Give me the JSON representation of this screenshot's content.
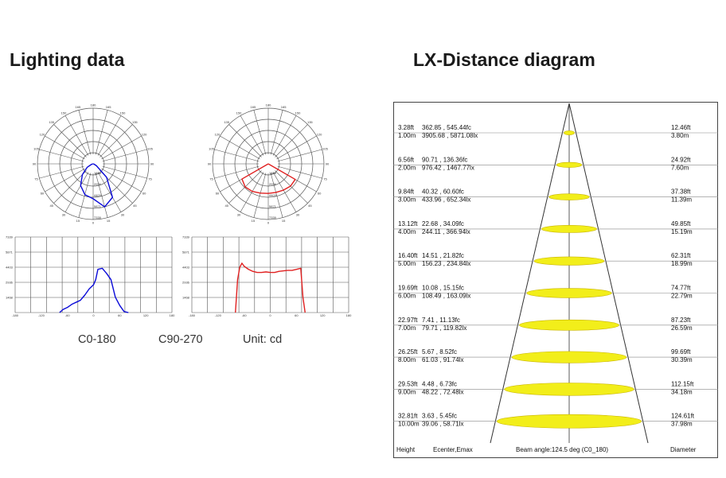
{
  "lighting_title": "Lighting data",
  "lx_title": "LX-Distance diagram",
  "curve_labels": {
    "c0": "C0-180",
    "c90": "C90-270",
    "unit": "Unit: cd"
  },
  "colors": {
    "c0_curve": "#0a0ad8",
    "c90_curve": "#e02020",
    "beam_fill": "#f2ee1a",
    "beam_stroke": "#c8b400",
    "grid": "#555555"
  },
  "polar_angle_labels": [
    "180",
    "165",
    "150",
    "135",
    "120",
    "105",
    "90",
    "75",
    "60",
    "45",
    "30",
    "15",
    "0"
  ],
  "polar_radial_labels": [
    "1468",
    "2936",
    "4403",
    "5871",
    "7339"
  ],
  "rect_y_labels": [
    "7339",
    "5871",
    "4403",
    "2936",
    "1468"
  ],
  "rect_x_labels": [
    "-180",
    "-120",
    "-60",
    "0",
    "60",
    "120",
    "180"
  ],
  "lx_rows": [
    {
      "h_ft": "3.28ft",
      "h_m": "1.00m",
      "e_fc": "362.85 , 545.44fc",
      "e_lx": "3905.68 , 5871.08lx",
      "d_ft": "12.46ft",
      "d_m": "3.80m"
    },
    {
      "h_ft": "6.56ft",
      "h_m": "2.00m",
      "e_fc": "90.71 , 136.36fc",
      "e_lx": "976.42 , 1467.77lx",
      "d_ft": "24.92ft",
      "d_m": "7.60m"
    },
    {
      "h_ft": "9.84ft",
      "h_m": "3.00m",
      "e_fc": "40.32 , 60.60fc",
      "e_lx": "433.96 , 652.34lx",
      "d_ft": "37.38ft",
      "d_m": "11.39m"
    },
    {
      "h_ft": "13.12ft",
      "h_m": "4.00m",
      "e_fc": "22.68 , 34.09fc",
      "e_lx": "244.11 , 366.94lx",
      "d_ft": "49.85ft",
      "d_m": "15.19m"
    },
    {
      "h_ft": "16.40ft",
      "h_m": "5.00m",
      "e_fc": "14.51 , 21.82fc",
      "e_lx": "156.23 , 234.84lx",
      "d_ft": "62.31ft",
      "d_m": "18.99m"
    },
    {
      "h_ft": "19.69ft",
      "h_m": "6.00m",
      "e_fc": "10.08 , 15.15fc",
      "e_lx": "108.49 , 163.09lx",
      "d_ft": "74.77ft",
      "d_m": "22.79m"
    },
    {
      "h_ft": "22.97ft",
      "h_m": "7.00m",
      "e_fc": "7.41 , 11.13fc",
      "e_lx": "79.71 , 119.82lx",
      "d_ft": "87.23ft",
      "d_m": "26.59m"
    },
    {
      "h_ft": "26.25ft",
      "h_m": "8.00m",
      "e_fc": "5.67 , 8.52fc",
      "e_lx": "61.03 , 91.74lx",
      "d_ft": "99.69ft",
      "d_m": "30.39m"
    },
    {
      "h_ft": "29.53ft",
      "h_m": "9.00m",
      "e_fc": "4.48 , 6.73fc",
      "e_lx": "48.22 , 72.48lx",
      "d_ft": "112.15ft",
      "d_m": "34.18m"
    },
    {
      "h_ft": "32.81ft",
      "h_m": "10.00m",
      "e_fc": "3.63 , 5.45fc",
      "e_lx": "39.06 , 58.71lx",
      "d_ft": "124.61ft",
      "d_m": "37.98m"
    }
  ],
  "lx_footer": {
    "height": "Height",
    "ecenter": "Ecenter,Emax",
    "beam": "Beam angle:124.5 deg (C0_180)",
    "diameter": "Diameter"
  },
  "chart_data": [
    {
      "type": "polar",
      "name": "C0-180",
      "unit": "cd",
      "r_max": 7339,
      "angles_deg": [
        -90,
        -75,
        -60,
        -45,
        -30,
        -15,
        0,
        15,
        30,
        45,
        60,
        75,
        90
      ],
      "values": [
        0,
        200,
        900,
        2000,
        3300,
        4200,
        4600,
        5871,
        5100,
        2500,
        500,
        100,
        0
      ]
    },
    {
      "type": "polar",
      "name": "C90-270",
      "unit": "cd",
      "r_max": 7339,
      "angles_deg": [
        -90,
        -75,
        -60,
        -45,
        -30,
        -15,
        0,
        15,
        30,
        45,
        60,
        75,
        90
      ],
      "values": [
        0,
        0,
        4000,
        4300,
        4200,
        4000,
        3900,
        3900,
        4000,
        4150,
        4100,
        0,
        0
      ]
    },
    {
      "type": "line",
      "name": "C0-180",
      "xlim": [
        -180,
        180
      ],
      "ylim": [
        0,
        7339
      ],
      "x": [
        -78,
        -70,
        -60,
        -50,
        -40,
        -30,
        -20,
        -10,
        0,
        5,
        10,
        20,
        30,
        40,
        50,
        60,
        70,
        80
      ],
      "y": [
        0,
        300,
        500,
        800,
        1000,
        1200,
        1700,
        2300,
        2700,
        3200,
        4200,
        4300,
        3800,
        3200,
        1500,
        700,
        100,
        0
      ]
    },
    {
      "type": "line",
      "name": "C90-270",
      "xlim": [
        -180,
        180
      ],
      "ylim": [
        0,
        7339
      ],
      "x": [
        -80,
        -75,
        -70,
        -65,
        -60,
        -50,
        -40,
        -30,
        -20,
        -10,
        0,
        10,
        20,
        30,
        40,
        50,
        60,
        70,
        75,
        80
      ],
      "y": [
        0,
        3200,
        4400,
        4800,
        4500,
        4200,
        4000,
        3900,
        3900,
        3950,
        3900,
        3900,
        4000,
        4050,
        4100,
        4100,
        4200,
        4300,
        1500,
        0
      ]
    }
  ]
}
